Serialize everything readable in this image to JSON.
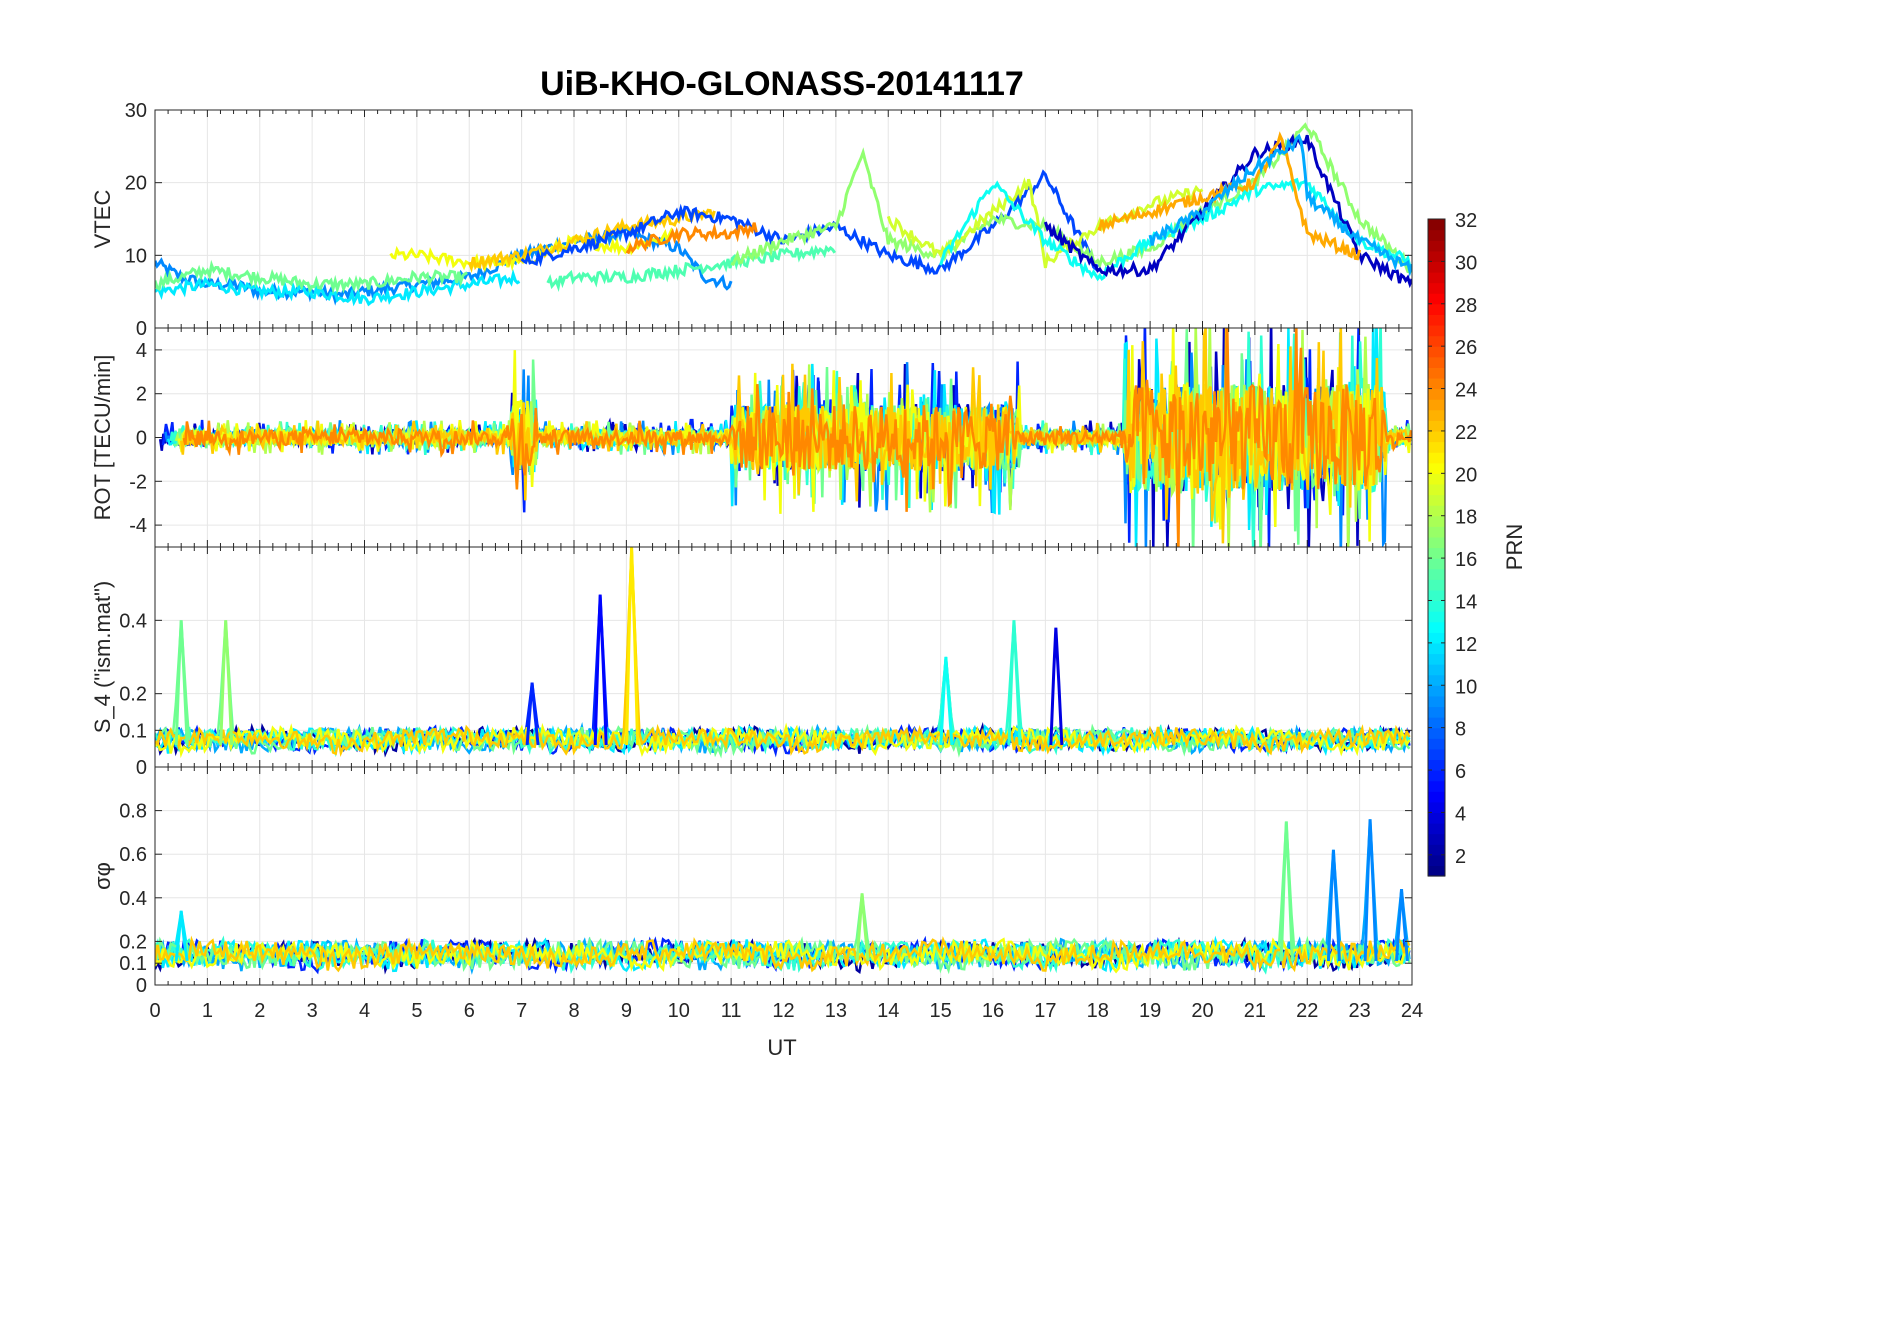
{
  "chart_data": {
    "type": "line",
    "title": "UiB-KHO-GLONASS-20141117",
    "xlabel": "UT",
    "x_ticks": [
      "0",
      "1",
      "2",
      "3",
      "4",
      "5",
      "6",
      "7",
      "8",
      "9",
      "10",
      "11",
      "12",
      "13",
      "14",
      "15",
      "16",
      "17",
      "18",
      "19",
      "20",
      "21",
      "22",
      "23",
      "24"
    ],
    "xlim": [
      0,
      24
    ],
    "grid": true,
    "colorbar": {
      "label": "PRN",
      "colormap": "jet",
      "range": [
        1,
        32
      ],
      "ticks": [
        "2",
        "4",
        "6",
        "8",
        "10",
        "12",
        "14",
        "16",
        "18",
        "20",
        "22",
        "24",
        "26",
        "28",
        "30",
        "32"
      ]
    },
    "panels": [
      {
        "ylabel": "VTEC",
        "ylim": [
          0,
          30
        ],
        "y_ticks": [
          "0",
          "10",
          "20",
          "30"
        ],
        "series": [
          {
            "prn": 9,
            "x": [
              0,
              0.5,
              1,
              1.5,
              2,
              2.5,
              3,
              3.5,
              4,
              5,
              6,
              7,
              8,
              9,
              10,
              10.5,
              11
            ],
            "y": [
              9,
              7,
              6,
              6,
              5,
              5,
              5,
              4.5,
              5,
              6,
              7,
              10,
              12,
              13,
              11,
              7,
              6
            ]
          },
          {
            "prn": 12,
            "x": [
              0,
              1,
              2,
              3,
              4,
              5,
              6,
              7
            ],
            "y": [
              5,
              6,
              5,
              5,
              4,
              5,
              6,
              7
            ]
          },
          {
            "prn": 16,
            "x": [
              0,
              1,
              2,
              3,
              4,
              5,
              6
            ],
            "y": [
              6,
              8,
              7,
              6,
              6,
              7,
              7
            ]
          },
          {
            "prn": 20,
            "x": [
              4.5,
              5,
              6,
              7,
              8,
              9,
              10
            ],
            "y": [
              10,
              10,
              9,
              9,
              12,
              11,
              13
            ]
          },
          {
            "prn": 22,
            "x": [
              6,
              7,
              8,
              9,
              10,
              10.7
            ],
            "y": [
              9,
              10,
              12,
              14,
              15,
              16
            ]
          },
          {
            "prn": 7,
            "x": [
              7,
              8,
              9,
              10,
              11,
              12,
              13,
              14,
              15,
              16,
              17,
              18
            ],
            "y": [
              9,
              11,
              13,
              16,
              15,
              12,
              14,
              10,
              8,
              14,
              21,
              8
            ]
          },
          {
            "prn": 24,
            "x": [
              9,
              10,
              11,
              11.5
            ],
            "y": [
              11,
              13,
              13,
              14
            ]
          },
          {
            "prn": 15,
            "x": [
              7.5,
              8,
              9,
              10,
              11,
              12,
              13
            ],
            "y": [
              6,
              7,
              7,
              8,
              9,
              10,
              11
            ]
          },
          {
            "prn": 17,
            "x": [
              11,
              12,
              13,
              13.5,
              14,
              15,
              16,
              17,
              18,
              19,
              20,
              21,
              22,
              23,
              24
            ],
            "y": [
              9,
              12,
              14,
              24,
              12,
              10,
              15,
              14,
              9,
              11,
              16,
              20,
              28,
              15,
              8
            ]
          },
          {
            "prn": 19,
            "x": [
              14,
              15,
              16,
              16.7,
              17,
              18,
              19,
              20
            ],
            "y": [
              15,
              10,
              16,
              20,
              9,
              14,
              17,
              19
            ]
          },
          {
            "prn": 13,
            "x": [
              15,
              16,
              17,
              18,
              19,
              20,
              21,
              22,
              23,
              24
            ],
            "y": [
              9,
              20,
              12,
              7,
              12,
              15,
              19,
              20,
              12,
              9
            ]
          },
          {
            "prn": 3,
            "x": [
              17,
              18,
              19,
              20,
              20.5,
              21,
              22,
              23,
              24
            ],
            "y": [
              14,
              8,
              8,
              16,
              20,
              24,
              26,
              10,
              6
            ]
          },
          {
            "prn": 23,
            "x": [
              18,
              19,
              20,
              21,
              21.5,
              22,
              23
            ],
            "y": [
              14,
              16,
              18,
              20,
              26,
              13,
              10
            ]
          },
          {
            "prn": 10,
            "x": [
              19,
              20,
              21,
              21.9,
              22,
              23,
              24
            ],
            "y": [
              12,
              16,
              22,
              26,
              18,
              12,
              8
            ]
          }
        ]
      },
      {
        "ylabel": "ROT [TECU/min]",
        "ylim": [
          -5,
          5
        ],
        "y_ticks": [
          "-4",
          "-2",
          "0",
          "2",
          "4"
        ],
        "note": "noise around 0 with larger amplitude bursts near 7, 11-16 and 18.5-23 UT"
      },
      {
        "ylabel": "S_4 (\"ism.mat\")",
        "ylim": [
          0,
          0.6
        ],
        "y_ticks": [
          "0",
          "0.1",
          "0.2",
          "0.4"
        ],
        "peaks": [
          {
            "prn": 16,
            "x": 0.5,
            "y": 0.4
          },
          {
            "prn": 17,
            "x": 1.35,
            "y": 0.4
          },
          {
            "prn": 5,
            "x": 8.5,
            "y": 0.47
          },
          {
            "prn": 21,
            "x": 9.1,
            "y": 0.6
          },
          {
            "prn": 6,
            "x": 7.2,
            "y": 0.23
          },
          {
            "prn": 14,
            "x": 16.4,
            "y": 0.4
          },
          {
            "prn": 4,
            "x": 17.2,
            "y": 0.38
          },
          {
            "prn": 13,
            "x": 15.1,
            "y": 0.3
          }
        ]
      },
      {
        "ylabel": "σφ",
        "ylim": [
          0,
          1
        ],
        "y_ticks": [
          "0",
          "0.1",
          "0.2",
          "0.4",
          "0.6",
          "0.8"
        ],
        "peaks": [
          {
            "prn": 16,
            "x": 21.6,
            "y": 0.75
          },
          {
            "prn": 9,
            "x": 23.2,
            "y": 0.76
          },
          {
            "prn": 9,
            "x": 22.5,
            "y": 0.62
          },
          {
            "prn": 17,
            "x": 13.5,
            "y": 0.42
          },
          {
            "prn": 12,
            "x": 0.5,
            "y": 0.34
          },
          {
            "prn": 9,
            "x": 23.8,
            "y": 0.44
          }
        ]
      }
    ]
  }
}
